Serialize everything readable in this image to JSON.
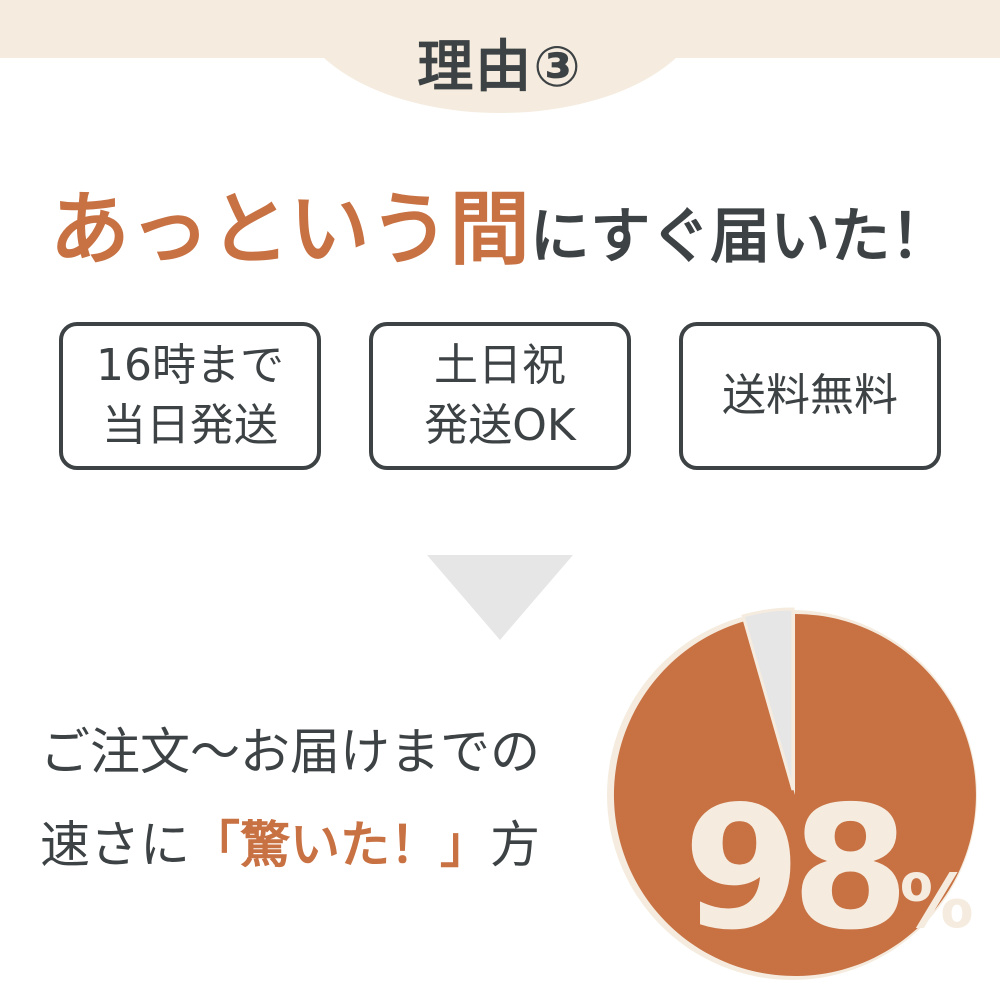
{
  "colors": {
    "accent": "#c87143",
    "cream": "#f5ecdf",
    "text": "#3d4244",
    "grey": "#e6e6e6"
  },
  "header": {
    "title": "理由③"
  },
  "headline": {
    "emphasis": "あっという間",
    "rest": "にすぐ届いた！"
  },
  "badges": [
    {
      "line1": "16時まで",
      "line2": "当日発送"
    },
    {
      "line1": "土日祝",
      "line2": "発送OK"
    },
    {
      "line1": "送料無料",
      "line2": ""
    }
  ],
  "claim": {
    "line1": "ご注文～お届けまでの",
    "line2_pre": "速さに",
    "line2_highlight": "「驚いた！」",
    "line2_post": "方"
  },
  "chart": {
    "type": "pie",
    "value_percent": 98,
    "number": "98",
    "unit": "%"
  }
}
